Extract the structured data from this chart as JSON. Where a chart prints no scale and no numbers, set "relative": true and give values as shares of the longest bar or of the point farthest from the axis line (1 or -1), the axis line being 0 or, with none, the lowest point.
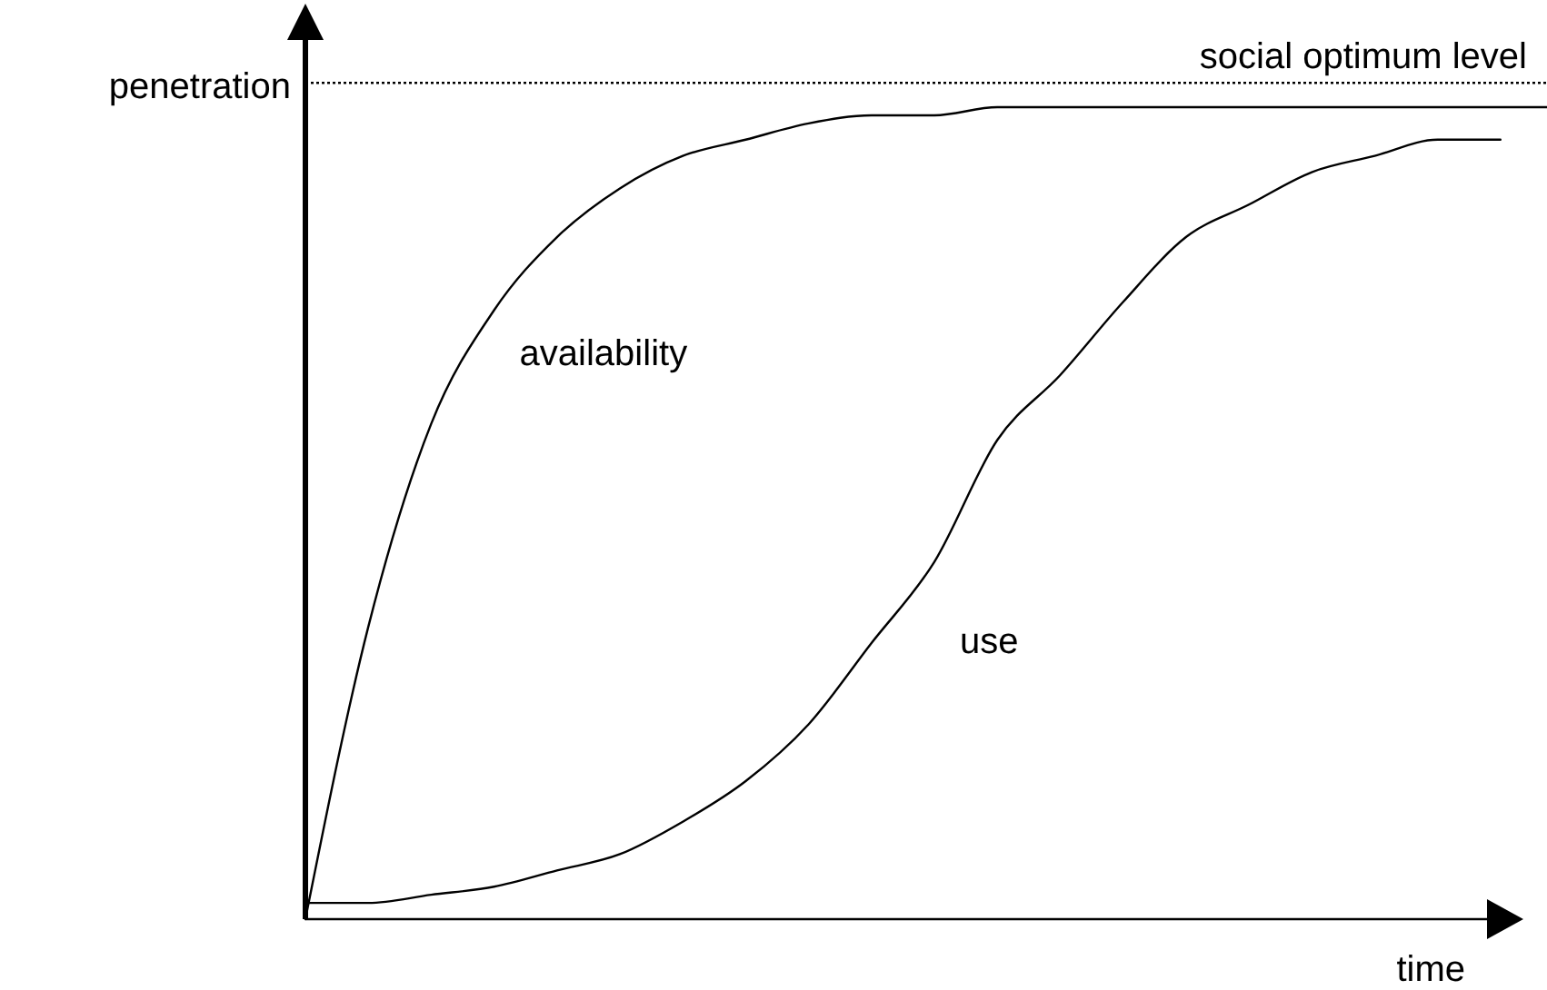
{
  "chart_data": {
    "type": "line",
    "relative": true,
    "xlabel": "time",
    "ylabel": "penetration",
    "categories": [
      null,
      null,
      null,
      null,
      null,
      null,
      null,
      null,
      null,
      null,
      null,
      null,
      null,
      null,
      null,
      null,
      null,
      null,
      null,
      null,
      null
    ],
    "series": [
      {
        "name": "availability",
        "color": "#000000",
        "values": [
          0,
          0.36,
          0.61,
          0.75,
          0.84,
          0.9,
          0.94,
          0.96,
          0.98,
          0.99,
          0.99,
          1,
          1,
          1,
          1,
          1,
          1,
          1,
          1,
          1,
          1
        ]
      },
      {
        "name": "use",
        "color": "#000000",
        "values": [
          0.02,
          0.02,
          0.03,
          0.04,
          0.06,
          0.08,
          0.12,
          0.17,
          0.24,
          0.34,
          0.44,
          0.59,
          0.67,
          0.76,
          0.84,
          0.88,
          0.92,
          0.94,
          0.96,
          0.96,
          null
        ]
      }
    ],
    "ref_lines": [
      {
        "axis": "y",
        "value": 1.03,
        "label": "social optimum level",
        "line_style": "dotted",
        "color": "#000000"
      }
    ],
    "marker": "none",
    "line_style": "solid"
  }
}
